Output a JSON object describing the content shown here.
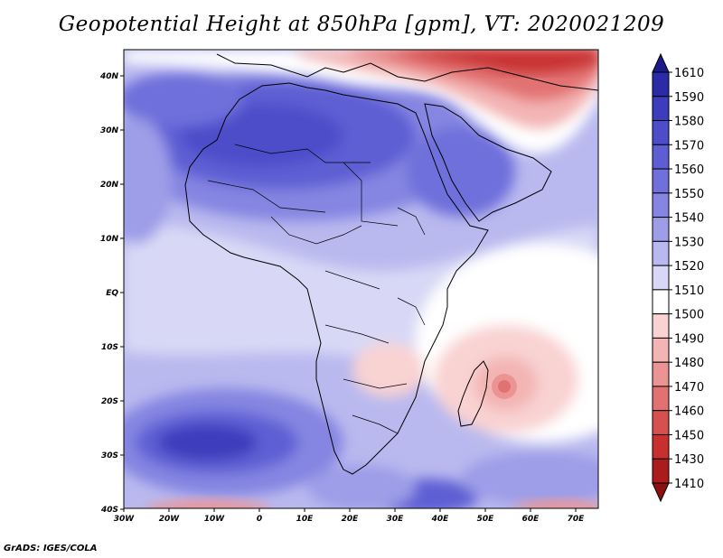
{
  "title": "Geopotential Height at 850hPa [gpm], VT: 2020021209",
  "footer": "GrADS: IGES/COLA",
  "axes": {
    "lon_ticks": [
      "30W",
      "20W",
      "10W",
      "0",
      "10E",
      "20E",
      "30E",
      "40E",
      "50E",
      "60E",
      "70E"
    ],
    "lat_ticks": [
      "40N",
      "30N",
      "20N",
      "10N",
      "EQ",
      "10S",
      "20S",
      "30S",
      "40S"
    ]
  },
  "colorbar": {
    "levels": [
      "1610",
      "1590",
      "1580",
      "1570",
      "1560",
      "1550",
      "1540",
      "1530",
      "1520",
      "1510",
      "1500",
      "1490",
      "1480",
      "1470",
      "1460",
      "1450",
      "1430",
      "1410"
    ],
    "colors": [
      "#1a1a8c",
      "#2b2ba8",
      "#3c3cbd",
      "#4d4dca",
      "#5e5ed4",
      "#7070dc",
      "#8585e2",
      "#9d9de8",
      "#b9b9ef",
      "#d8d8f6",
      "#ffffff",
      "#f9d2d2",
      "#f3b4b4",
      "#ec9494",
      "#e27272",
      "#d65050",
      "#c83030",
      "#ac1c1c",
      "#8c1010"
    ]
  },
  "map_regions": {
    "north_low": "Mediterranean / Middle East trough",
    "south_high": "South Atlantic high",
    "cyclone": "Madagascar low"
  }
}
